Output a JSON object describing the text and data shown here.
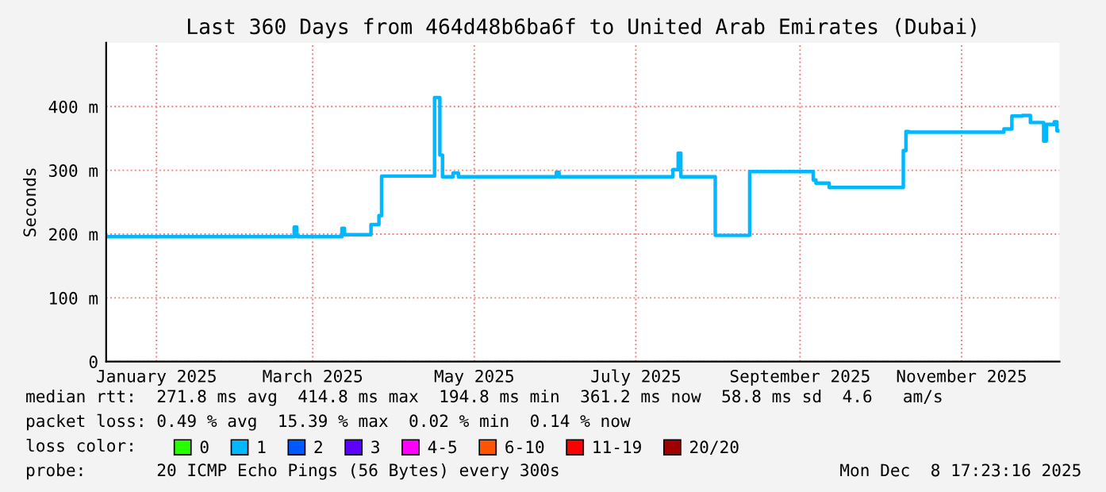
{
  "chart_data": {
    "type": "step",
    "title": "Last 360 Days from 464d48b6ba6f to United Arab Emirates (Dubai)",
    "ylabel": "Seconds",
    "xlim": [
      "2024-12-13",
      "2025-12-08"
    ],
    "xticks": [
      {
        "value": "2025-01-01",
        "label": "January 2025"
      },
      {
        "value": "2025-03-01",
        "label": "March 2025"
      },
      {
        "value": "2025-05-01",
        "label": "May 2025"
      },
      {
        "value": "2025-07-01",
        "label": "July 2025"
      },
      {
        "value": "2025-09-01",
        "label": "September 2025"
      },
      {
        "value": "2025-11-01",
        "label": "November 2025"
      }
    ],
    "ylim": [
      0,
      500
    ],
    "yticks": [
      0,
      {
        "value": 100,
        "label": "100 m"
      },
      {
        "value": 200,
        "label": "200 m"
      },
      {
        "value": 300,
        "label": "300 m"
      },
      {
        "value": 400,
        "label": "400 m"
      }
    ],
    "grid": true,
    "legend": "bottom",
    "legend_title": "loss color:",
    "series": [
      {
        "name": "0",
        "color": "#26ff00"
      },
      {
        "name": "1",
        "color": "#00b8ff",
        "x": [
          "2024-12-14",
          "2025-02-22",
          "2025-02-23",
          "2025-03-12",
          "2025-03-13",
          "2025-03-23",
          "2025-03-26",
          "2025-03-27",
          "2025-04-16",
          "2025-04-18",
          "2025-04-19",
          "2025-04-23",
          "2025-04-25",
          "2025-06-01",
          "2025-06-02",
          "2025-07-15",
          "2025-07-17",
          "2025-07-18",
          "2025-07-31",
          "2025-08-13",
          "2025-09-06",
          "2025-09-07",
          "2025-09-12",
          "2025-10-10",
          "2025-10-11",
          "2025-10-12",
          "2025-11-17",
          "2025-11-20",
          "2025-11-24",
          "2025-11-27",
          "2025-12-02",
          "2025-12-03",
          "2025-12-06",
          "2025-12-07",
          "2025-12-08"
        ],
        "values": [
          196,
          211,
          196,
          209,
          199,
          215,
          229,
          291,
          414,
          324,
          290,
          296,
          290,
          297,
          290,
          301,
          327,
          290,
          198,
          298,
          285,
          280,
          273,
          331,
          361,
          360,
          365,
          385,
          386,
          375,
          346,
          372,
          376,
          362,
          362
        ]
      },
      {
        "name": "2",
        "color": "#0059ff"
      },
      {
        "name": "3",
        "color": "#5e00ff"
      },
      {
        "name": "4-5",
        "color": "#ff00ff"
      },
      {
        "name": "6-10",
        "color": "#ff5500"
      },
      {
        "name": "11-19",
        "color": "#ff0000"
      },
      {
        "name": "20/20",
        "color": "#a10000"
      }
    ],
    "annotations": [
      "median rtt:  271.8 ms avg  414.8 ms max  194.8 ms min  361.2 ms now  58.8 ms sd  4.6   am/s",
      "packet loss: 0.49 % avg  15.39 % max  0.02 % min  0.14 % now",
      "probe:       20 ICMP Echo Pings (56 Bytes) every 300s",
      "Mon Dec  8 17:23:16 2025"
    ]
  }
}
